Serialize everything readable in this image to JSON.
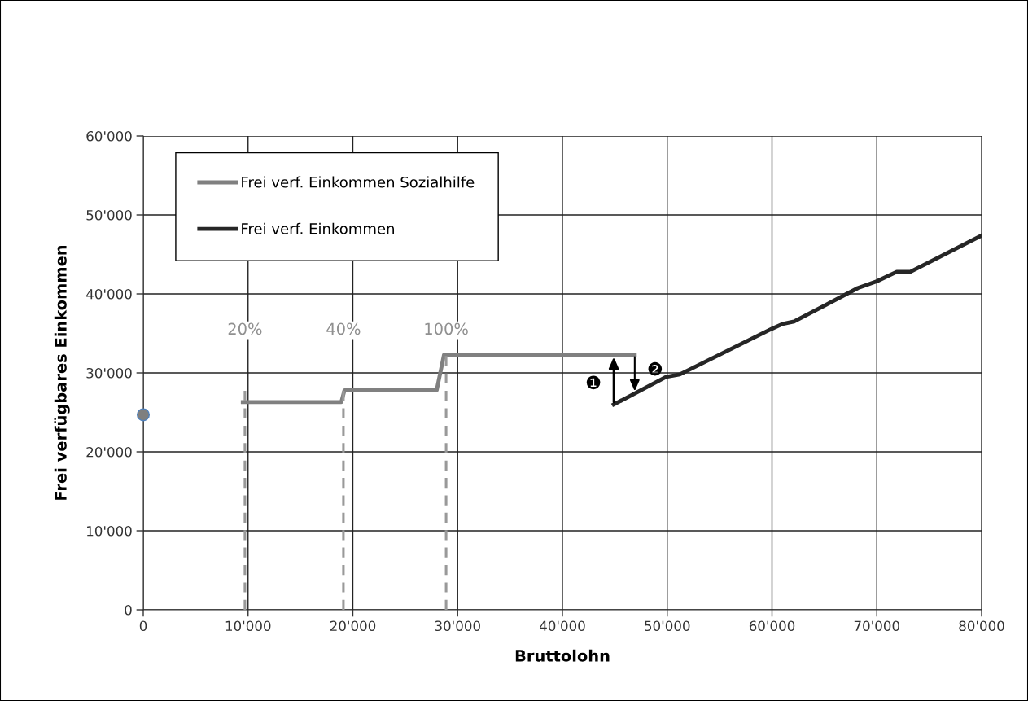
{
  "chart_data": {
    "type": "line",
    "xlabel": "Bruttolohn",
    "ylabel": "Frei verfügbares Einkommen",
    "series": [
      {
        "name": "Frei verf. Einkommen Sozialhilfe",
        "color": "#808080",
        "x": [
          9500,
          18900,
          19200,
          28000,
          28700,
          46900
        ],
        "values": [
          26300,
          26300,
          27800,
          27800,
          32300,
          32300
        ]
      },
      {
        "name": "Frei verf. Einkommen",
        "color": "#262626",
        "x": [
          44900,
          49900,
          51200,
          60000,
          61000,
          62100,
          68200,
          70000,
          71900,
          73200,
          80000
        ],
        "values": [
          26000,
          29500,
          29800,
          35600,
          36200,
          36500,
          40750,
          41600,
          42800,
          42800,
          47400
        ]
      },
      {
        "type": "scatter",
        "color": "#7f7f7f",
        "x": [
          0
        ],
        "values": [
          24700
        ]
      },
      {
        "color": "#999999",
        "line_style": "dashed",
        "x": [
          9700,
          9700
        ],
        "values": [
          0,
          28100
        ]
      },
      {
        "color": "#999999",
        "line_style": "dashed",
        "x": [
          19100,
          19100
        ],
        "values": [
          0,
          27800
        ]
      },
      {
        "color": "#999999",
        "line_style": "dashed",
        "x": [
          28900,
          28900
        ],
        "values": [
          0,
          32300
        ]
      }
    ],
    "annotations": [
      "❶",
      "❷",
      "20%",
      "40%",
      "100%"
    ],
    "xlim": [
      0,
      80000
    ],
    "ylim": [
      0,
      60000
    ],
    "xticks": [
      0,
      {
        "value": 10000,
        "label": "10'000"
      },
      {
        "value": 20000,
        "label": "20'000"
      },
      {
        "value": 30000,
        "label": "30'000"
      },
      {
        "value": 40000,
        "label": "40'000"
      },
      {
        "value": 50000,
        "label": "50'000"
      },
      {
        "value": 60000,
        "label": "60'000"
      },
      {
        "value": 70000,
        "label": "70'000"
      },
      {
        "value": 80000,
        "label": "80'000"
      }
    ],
    "yticks": [
      0,
      {
        "value": 10000,
        "label": "10'000"
      },
      {
        "value": 20000,
        "label": "20'000"
      },
      {
        "value": 30000,
        "label": "30'000"
      },
      {
        "value": 40000,
        "label": "40'000"
      },
      {
        "value": 50000,
        "label": "50'000"
      },
      {
        "value": 60000,
        "label": "60'000"
      }
    ],
    "grid": true,
    "legend": "top left"
  }
}
